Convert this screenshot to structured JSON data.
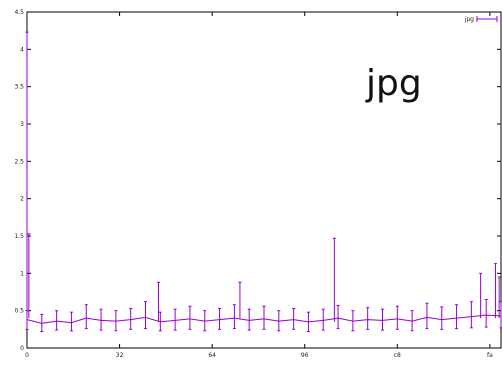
{
  "chart_data": {
    "type": "line",
    "title": "",
    "xlabel": "",
    "ylabel": "",
    "annotation": "jpg",
    "xlim": [
      0,
      256
    ],
    "ylim": [
      0,
      4.5
    ],
    "x_ticks": [
      {
        "value": 0,
        "label": "0"
      },
      {
        "value": 50,
        "label": "32"
      },
      {
        "value": 100,
        "label": "64"
      },
      {
        "value": 150,
        "label": "96"
      },
      {
        "value": 200,
        "label": "c8"
      },
      {
        "value": 250,
        "label": "fa"
      }
    ],
    "y_ticks": [
      {
        "value": 0,
        "label": "0"
      },
      {
        "value": 0.5,
        "label": "0.5"
      },
      {
        "value": 1,
        "label": "1"
      },
      {
        "value": 1.5,
        "label": "1.5"
      },
      {
        "value": 2,
        "label": "2"
      },
      {
        "value": 2.5,
        "label": "2.5"
      },
      {
        "value": 3,
        "label": "3"
      },
      {
        "value": 3.5,
        "label": "3.5"
      },
      {
        "value": 4,
        "label": "4"
      },
      {
        "value": 4.5,
        "label": "4.5"
      }
    ],
    "grid": false,
    "legend": {
      "position": "top-right",
      "entries": [
        "jpg"
      ]
    },
    "colors": {
      "series": "#9400d3",
      "axis": "#000000"
    },
    "series": [
      {
        "name": "jpg",
        "x": [
          0,
          8,
          16,
          24,
          32,
          40,
          48,
          56,
          64,
          72,
          80,
          88,
          96,
          104,
          112,
          120,
          128,
          136,
          144,
          152,
          160,
          168,
          176,
          184,
          192,
          200,
          208,
          216,
          224,
          232,
          240,
          248,
          256
        ],
        "y": [
          0.38,
          0.33,
          0.36,
          0.34,
          0.4,
          0.37,
          0.36,
          0.38,
          0.41,
          0.35,
          0.37,
          0.39,
          0.36,
          0.38,
          0.4,
          0.37,
          0.39,
          0.36,
          0.38,
          0.35,
          0.37,
          0.4,
          0.36,
          0.38,
          0.37,
          0.39,
          0.36,
          0.41,
          0.38,
          0.4,
          0.42,
          0.44,
          0.43
        ],
        "y_err_high": [
          0.5,
          0.45,
          0.5,
          0.48,
          0.58,
          0.52,
          0.5,
          0.53,
          0.62,
          0.48,
          0.52,
          0.56,
          0.5,
          0.53,
          0.58,
          0.52,
          0.56,
          0.5,
          0.53,
          0.48,
          0.52,
          0.57,
          0.5,
          0.54,
          0.52,
          0.56,
          0.5,
          0.6,
          0.55,
          0.58,
          0.62,
          0.65,
          0.62
        ],
        "y_err_low": [
          0.25,
          0.22,
          0.24,
          0.23,
          0.26,
          0.24,
          0.23,
          0.25,
          0.26,
          0.23,
          0.24,
          0.25,
          0.23,
          0.25,
          0.26,
          0.24,
          0.25,
          0.23,
          0.25,
          0.22,
          0.24,
          0.26,
          0.23,
          0.25,
          0.24,
          0.25,
          0.23,
          0.26,
          0.25,
          0.26,
          0.27,
          0.28,
          0.27
        ]
      }
    ],
    "outliers": [
      {
        "x": 0,
        "y_low": 0.4,
        "y_high": 4.23
      },
      {
        "x": 1,
        "y_low": 0.4,
        "y_high": 1.53
      },
      {
        "x": 71,
        "y_low": 0.35,
        "y_high": 0.88
      },
      {
        "x": 115,
        "y_low": 0.4,
        "y_high": 0.88
      },
      {
        "x": 166,
        "y_low": 0.35,
        "y_high": 1.47
      },
      {
        "x": 245,
        "y_low": 0.4,
        "y_high": 1.0
      },
      {
        "x": 253,
        "y_low": 0.4,
        "y_high": 1.13
      },
      {
        "x": 255,
        "y_low": 0.4,
        "y_high": 0.95
      }
    ]
  }
}
